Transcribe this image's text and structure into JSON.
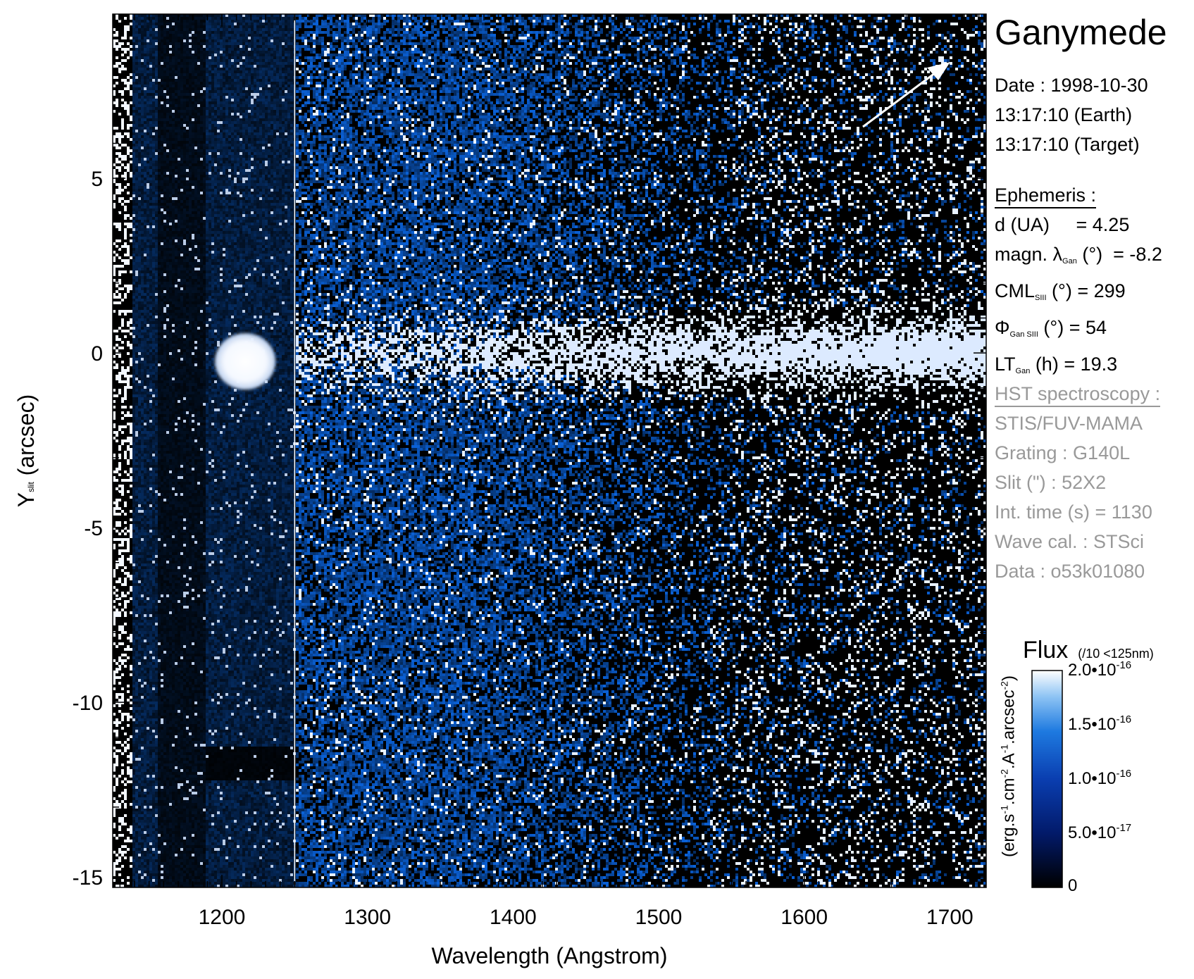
{
  "colors": {
    "background": "#000000",
    "mid": "#0a56c8",
    "bright": "#ffffff",
    "annotation_gray": "#999999"
  },
  "chart_data": {
    "type": "heatmap",
    "title": "Ganymede",
    "xlabel": "Wavelength (Angstrom)",
    "ylabel": {
      "main": "Y",
      "sub": "slit",
      "rest": " (arcsec)"
    },
    "xlim": [
      1125,
      1725
    ],
    "ylim": [
      -15.3,
      9.7
    ],
    "x_ticks": [
      {
        "value": 1200,
        "label": "1200"
      },
      {
        "value": 1300,
        "label": "1300"
      },
      {
        "value": 1400,
        "label": "1400"
      },
      {
        "value": 1500,
        "label": "1500"
      },
      {
        "value": 1600,
        "label": "1600"
      },
      {
        "value": 1700,
        "label": "1700"
      }
    ],
    "y_ticks": [
      {
        "value": 5,
        "label": "5"
      },
      {
        "value": 0,
        "label": "0"
      },
      {
        "value": -5,
        "label": "-5"
      },
      {
        "value": -10,
        "label": "-10"
      },
      {
        "value": -15,
        "label": "-15"
      }
    ],
    "features": {
      "lyman_alpha_blob": {
        "wavelength": 1216,
        "y": 0
      },
      "emission_band_center_y": 0,
      "slit_edge_wavelength": 1250
    },
    "colorbar": {
      "label": "Flux",
      "note": "(/10 <125nm)",
      "units": "(erg.s-1.cm-2.A-1.arcsec-2)",
      "range": [
        0,
        2e-16
      ],
      "ticks": [
        {
          "value": 2e-16,
          "mantissa": "2.0•10",
          "exponent": "-16"
        },
        {
          "value": 1.5e-16,
          "mantissa": "1.5•10",
          "exponent": "-16"
        },
        {
          "value": 1e-16,
          "mantissa": "1.0•10",
          "exponent": "-16"
        },
        {
          "value": 5e-17,
          "mantissa": "5.0•10",
          "exponent": "-17"
        },
        {
          "value": 0,
          "mantissa": "0",
          "exponent": ""
        }
      ]
    }
  },
  "info": {
    "date": "Date : 1998-10-30",
    "earth": "13:17:10 (Earth)",
    "target": "13:17:10 (Target)"
  },
  "ephemeris": {
    "heading": "Ephemeris :",
    "d": "d (UA)     = 4.25",
    "magn": {
      "pre": "magn. λ",
      "sub": "Gan",
      "post": " (°)  = -8.2"
    },
    "cml": {
      "pre": "CML",
      "sub": "SIII",
      "post": " (°) = 299"
    },
    "phi": {
      "pre": "Φ",
      "sub": "Gan SIII",
      "post": " (°) = 54"
    },
    "lt": {
      "pre": "LT",
      "sub": "Gan",
      "post": " (h) = 19.3"
    }
  },
  "hst": {
    "heading": "HST spectroscopy :",
    "lines": [
      "STIS/FUV-MAMA",
      "Grating : G140L",
      "Slit (\") : 52X2",
      "Int. time (s) = 1130",
      "Wave cal. : STSci",
      "Data : o53k01080"
    ]
  }
}
